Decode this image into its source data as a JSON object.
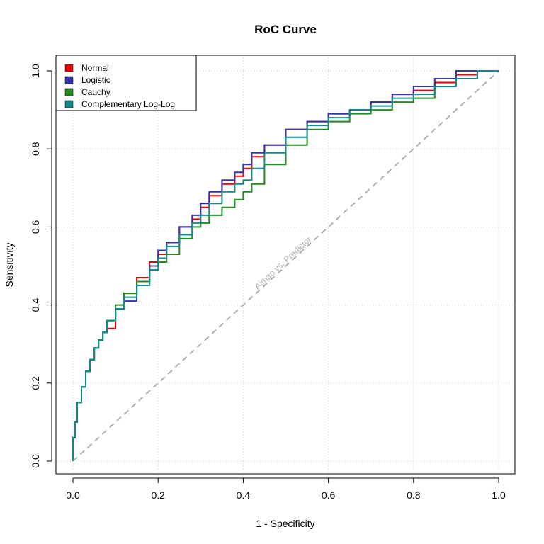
{
  "chart_data": {
    "type": "line",
    "title": "RoC Curve",
    "xlabel": "1 - Specificity",
    "ylabel": "Sensitivity",
    "xlim": [
      0,
      1
    ],
    "ylim": [
      0,
      1
    ],
    "xticks": [
      "0.0",
      "0.2",
      "0.4",
      "0.6",
      "0.8",
      "1.0"
    ],
    "yticks": [
      "0.0",
      "0.2",
      "0.4",
      "0.6",
      "0.8",
      "1.0"
    ],
    "grid": true,
    "legend_position": "top-left",
    "diagonal": {
      "label": "Aimao vs. Predictor",
      "color": "#b0b0b0",
      "x": [
        0,
        1
      ],
      "y": [
        0,
        1
      ]
    },
    "series": [
      {
        "name": "Normal",
        "color": "#ee0000",
        "x": [
          0,
          0.005,
          0.01,
          0.02,
          0.03,
          0.04,
          0.05,
          0.06,
          0.07,
          0.08,
          0.1,
          0.12,
          0.15,
          0.18,
          0.2,
          0.22,
          0.25,
          0.28,
          0.3,
          0.32,
          0.35,
          0.38,
          0.4,
          0.42,
          0.45,
          0.5,
          0.55,
          0.6,
          0.65,
          0.7,
          0.75,
          0.8,
          0.85,
          0.9,
          0.95,
          1.0
        ],
        "y": [
          0,
          0.06,
          0.1,
          0.15,
          0.19,
          0.23,
          0.26,
          0.29,
          0.31,
          0.33,
          0.34,
          0.39,
          0.43,
          0.47,
          0.51,
          0.53,
          0.56,
          0.6,
          0.62,
          0.65,
          0.68,
          0.71,
          0.73,
          0.75,
          0.78,
          0.81,
          0.85,
          0.87,
          0.89,
          0.9,
          0.92,
          0.94,
          0.95,
          0.97,
          0.99,
          1.0
        ]
      },
      {
        "name": "Logistic",
        "color": "#3333aa",
        "x": [
          0,
          0.005,
          0.01,
          0.02,
          0.03,
          0.04,
          0.05,
          0.06,
          0.07,
          0.08,
          0.1,
          0.12,
          0.15,
          0.18,
          0.2,
          0.22,
          0.25,
          0.28,
          0.3,
          0.32,
          0.35,
          0.38,
          0.4,
          0.42,
          0.45,
          0.5,
          0.55,
          0.6,
          0.65,
          0.7,
          0.75,
          0.8,
          0.85,
          0.9,
          0.95,
          1.0
        ],
        "y": [
          0,
          0.06,
          0.1,
          0.15,
          0.19,
          0.23,
          0.26,
          0.29,
          0.31,
          0.33,
          0.36,
          0.39,
          0.41,
          0.46,
          0.5,
          0.54,
          0.56,
          0.6,
          0.63,
          0.66,
          0.69,
          0.72,
          0.74,
          0.76,
          0.79,
          0.81,
          0.85,
          0.87,
          0.89,
          0.9,
          0.92,
          0.94,
          0.96,
          0.98,
          1.0,
          1.0
        ]
      },
      {
        "name": "Cauchy",
        "color": "#228b22",
        "x": [
          0,
          0.005,
          0.01,
          0.02,
          0.03,
          0.04,
          0.05,
          0.06,
          0.07,
          0.08,
          0.1,
          0.12,
          0.15,
          0.18,
          0.2,
          0.22,
          0.25,
          0.28,
          0.3,
          0.32,
          0.35,
          0.38,
          0.4,
          0.42,
          0.45,
          0.5,
          0.55,
          0.6,
          0.65,
          0.7,
          0.75,
          0.8,
          0.85,
          0.9,
          0.95,
          1.0
        ],
        "y": [
          0,
          0.06,
          0.1,
          0.15,
          0.19,
          0.23,
          0.26,
          0.29,
          0.31,
          0.33,
          0.36,
          0.4,
          0.43,
          0.46,
          0.49,
          0.51,
          0.53,
          0.57,
          0.6,
          0.61,
          0.63,
          0.65,
          0.67,
          0.69,
          0.71,
          0.76,
          0.81,
          0.85,
          0.87,
          0.89,
          0.9,
          0.92,
          0.93,
          0.96,
          0.98,
          1.0
        ]
      },
      {
        "name": "Complementary Log-Log",
        "color": "#138a8a",
        "x": [
          0,
          0.005,
          0.01,
          0.02,
          0.03,
          0.04,
          0.05,
          0.06,
          0.07,
          0.08,
          0.1,
          0.12,
          0.15,
          0.18,
          0.2,
          0.22,
          0.25,
          0.28,
          0.3,
          0.32,
          0.35,
          0.38,
          0.4,
          0.42,
          0.45,
          0.5,
          0.55,
          0.6,
          0.65,
          0.7,
          0.75,
          0.8,
          0.85,
          0.9,
          0.95,
          1.0
        ],
        "y": [
          0,
          0.06,
          0.1,
          0.15,
          0.19,
          0.23,
          0.26,
          0.29,
          0.31,
          0.33,
          0.36,
          0.39,
          0.42,
          0.45,
          0.49,
          0.52,
          0.55,
          0.58,
          0.61,
          0.63,
          0.66,
          0.69,
          0.71,
          0.72,
          0.75,
          0.79,
          0.83,
          0.86,
          0.88,
          0.9,
          0.91,
          0.93,
          0.94,
          0.96,
          0.98,
          1.0
        ]
      }
    ]
  }
}
